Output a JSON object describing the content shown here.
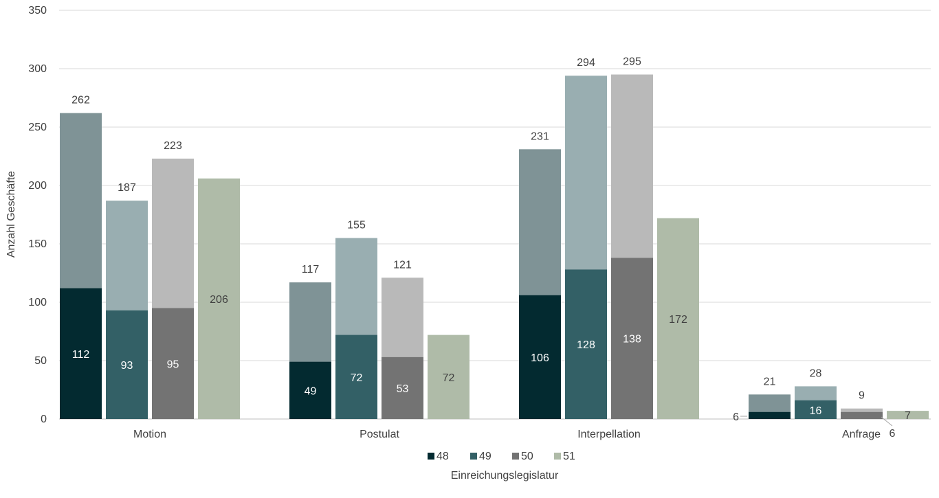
{
  "chart_data": {
    "type": "bar",
    "stacked": true,
    "categories": [
      "Motion",
      "Postulat",
      "Interpellation",
      "Anfrage"
    ],
    "xlabel": "Einreichungslegislatur",
    "ylabel": "Anzahl Geschäfte",
    "ylim": [
      0,
      350
    ],
    "yticks": [
      "0",
      "50",
      "100",
      "150",
      "200",
      "250",
      "300",
      "350"
    ],
    "grid": true,
    "legend_position": "bottom",
    "series": [
      {
        "name": "48",
        "color": "#032a30",
        "top_color": "#7f9396",
        "inner": [
          112,
          49,
          106,
          6
        ],
        "total": [
          262,
          117,
          231,
          21
        ]
      },
      {
        "name": "49",
        "color": "#336066",
        "top_color": "#99aeb1",
        "inner": [
          93,
          72,
          128,
          16
        ],
        "total": [
          187,
          155,
          294,
          28
        ]
      },
      {
        "name": "50",
        "color": "#737373",
        "top_color": "#b9b9b9",
        "inner": [
          95,
          53,
          138,
          6
        ],
        "total": [
          223,
          121,
          295,
          9
        ]
      },
      {
        "name": "51",
        "color": "#afbba8",
        "top_color": "#afbba8",
        "inner": [
          206,
          72,
          172,
          7
        ],
        "total": [
          null,
          null,
          null,
          null
        ]
      }
    ],
    "inner_label_colors": [
      "#ffffff",
      "#ffffff",
      "#ffffff",
      "#404040"
    ]
  }
}
